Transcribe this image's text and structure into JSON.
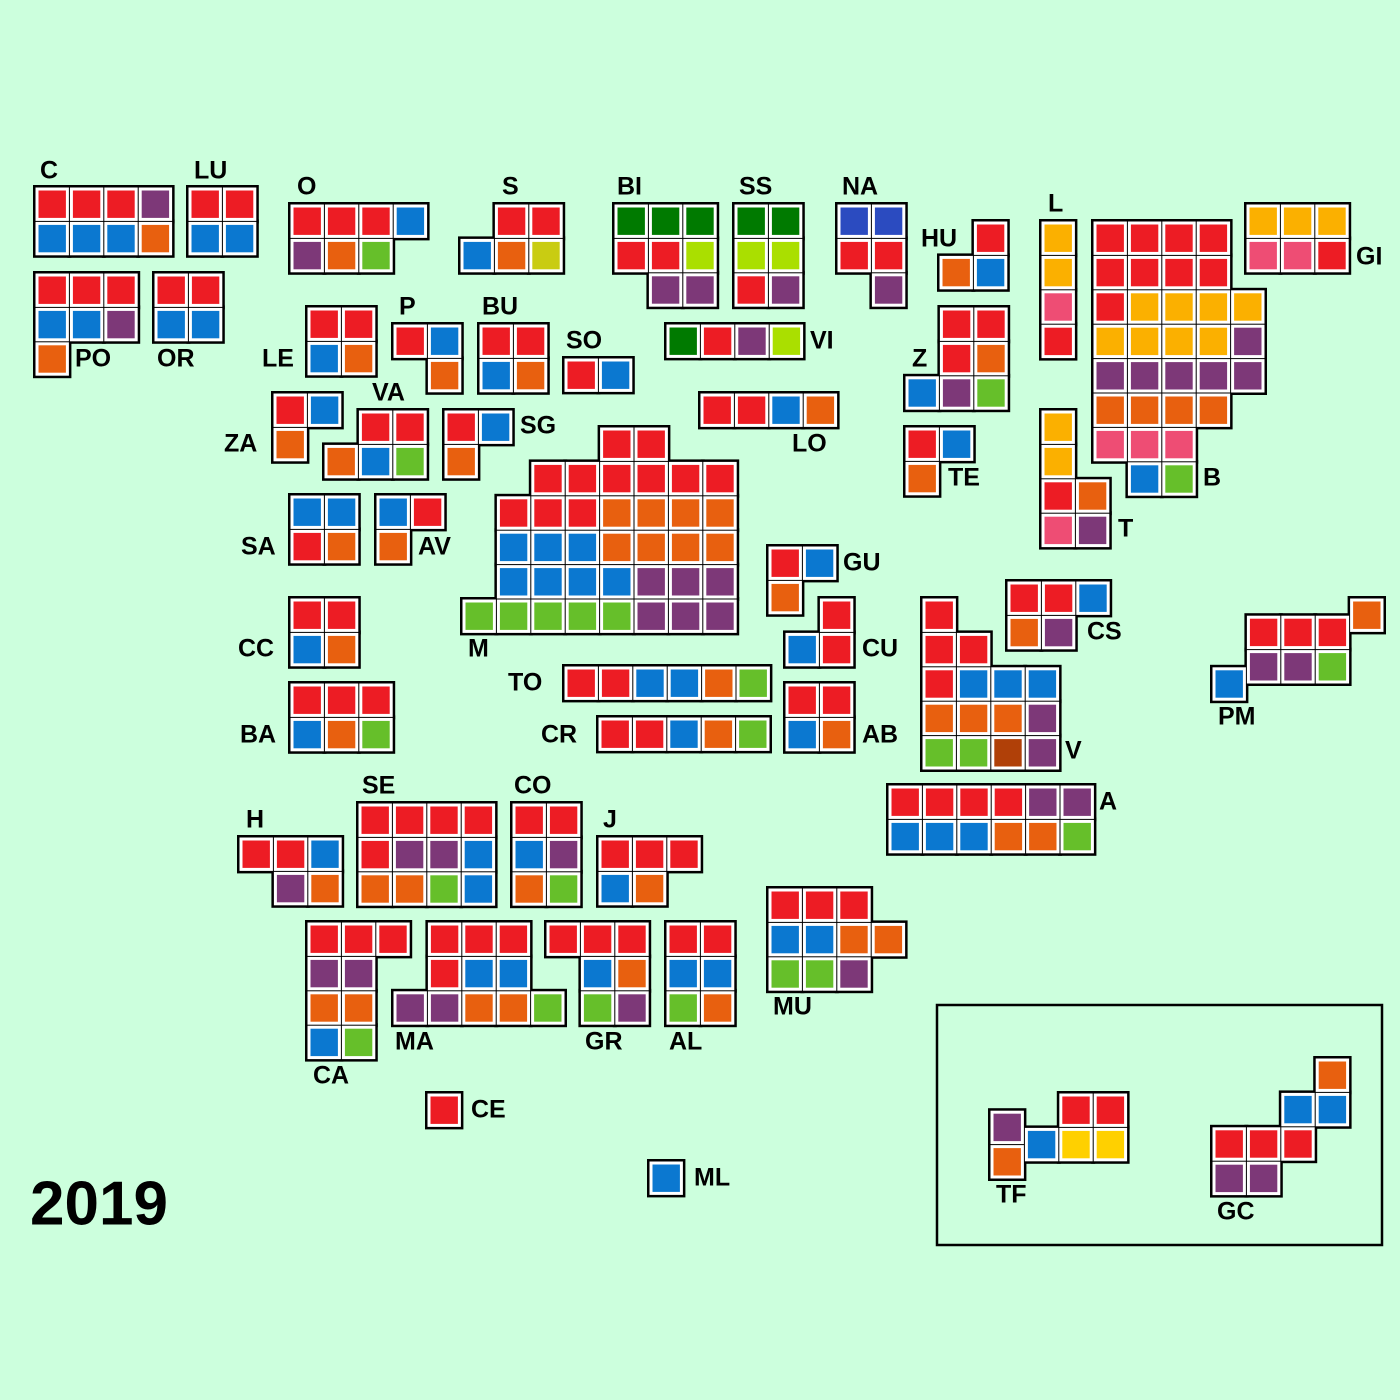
{
  "title": "2019",
  "provinces": [
    {
      "label": "C",
      "seats": [
        "#ed1c24",
        "#ed1c24",
        "#ed1c24",
        "#7d3878",
        "#0b78d0",
        "#0b78d0",
        "#0b78d0",
        "#e8600f"
      ]
    },
    {
      "label": "LU",
      "seats": [
        "#ed1c24",
        "#ed1c24",
        "#0b78d0",
        "#0b78d0"
      ]
    },
    {
      "label": "PO",
      "seats": [
        "#ed1c24",
        "#ed1c24",
        "#ed1c24",
        "#0b78d0",
        "#0b78d0",
        "#7d3878",
        "#e8600f"
      ]
    },
    {
      "label": "OR",
      "seats": [
        "#ed1c24",
        "#ed1c24",
        "#0b78d0",
        "#0b78d0"
      ]
    },
    {
      "label": "O",
      "seats": [
        "#ed1c24",
        "#ed1c24",
        "#ed1c24",
        "#0b78d0",
        "#7d3878",
        "#e8600f",
        "#66bf2a"
      ]
    },
    {
      "label": "S",
      "seats": [
        "#ed1c24",
        "#ed1c24",
        "#0b78d0",
        "#e8600f",
        "#c9cc12"
      ]
    },
    {
      "label": "BI",
      "seats": [
        "#007a00",
        "#007a00",
        "#007a00",
        "#ed1c24",
        "#ed1c24",
        "#aadf00",
        "#7d3878",
        "#7d3878"
      ]
    },
    {
      "label": "SS",
      "seats": [
        "#007a00",
        "#007a00",
        "#aadf00",
        "#aadf00",
        "#ed1c24",
        "#7d3878"
      ]
    },
    {
      "label": "NA",
      "seats": [
        "#2b4bc0",
        "#2b4bc0",
        "#ed1c24",
        "#ed1c24",
        "#7d3878"
      ]
    },
    {
      "label": "HU",
      "seats": [
        "#ed1c24",
        "#e8600f",
        "#0b78d0"
      ]
    },
    {
      "label": "L",
      "seats": [
        "#fbb000",
        "#fbb000",
        "#ee4d74",
        "#ed1c24"
      ]
    },
    {
      "label": "B",
      "seats": [
        "#ed1c24",
        "#ed1c24",
        "#ed1c24",
        "#ed1c24",
        "#ed1c24",
        "#ed1c24",
        "#ed1c24",
        "#ed1c24",
        "#ed1c24",
        "#fbb000",
        "#fbb000",
        "#fbb000",
        "#fbb000",
        "#fbb000",
        "#fbb000",
        "#fbb000",
        "#fbb000",
        "#7d3878",
        "#7d3878",
        "#7d3878",
        "#7d3878",
        "#7d3878",
        "#7d3878",
        "#e8600f",
        "#e8600f",
        "#e8600f",
        "#e8600f",
        "#ee4d74",
        "#ee4d74",
        "#ee4d74",
        "#0b78d0",
        "#66bf2a"
      ]
    },
    {
      "label": "GI",
      "seats": [
        "#fbb000",
        "#fbb000",
        "#fbb000",
        "#ee4d74",
        "#ee4d74",
        "#ed1c24"
      ]
    },
    {
      "label": "LE",
      "seats": [
        "#ed1c24",
        "#ed1c24",
        "#0b78d0",
        "#e8600f"
      ]
    },
    {
      "label": "P",
      "seats": [
        "#ed1c24",
        "#0b78d0",
        "#e8600f"
      ]
    },
    {
      "label": "BU",
      "seats": [
        "#ed1c24",
        "#ed1c24",
        "#0b78d0",
        "#e8600f"
      ]
    },
    {
      "label": "SO",
      "seats": [
        "#ed1c24",
        "#0b78d0"
      ]
    },
    {
      "label": "VI",
      "seats": [
        "#007a00",
        "#ed1c24",
        "#7d3878",
        "#aadf00"
      ]
    },
    {
      "label": "Z",
      "seats": [
        "#ed1c24",
        "#ed1c24",
        "#ed1c24",
        "#e8600f",
        "#0b78d0",
        "#7d3878",
        "#66bf2a"
      ]
    },
    {
      "label": "ZA",
      "seats": [
        "#ed1c24",
        "#0b78d0",
        "#e8600f"
      ]
    },
    {
      "label": "VA",
      "seats": [
        "#ed1c24",
        "#ed1c24",
        "#e8600f",
        "#0b78d0",
        "#66bf2a"
      ]
    },
    {
      "label": "SG",
      "seats": [
        "#ed1c24",
        "#0b78d0",
        "#e8600f"
      ]
    },
    {
      "label": "LO",
      "seats": [
        "#ed1c24",
        "#ed1c24",
        "#0b78d0",
        "#e8600f"
      ]
    },
    {
      "label": "TE",
      "seats": [
        "#ed1c24",
        "#0b78d0",
        "#e8600f"
      ]
    },
    {
      "label": "T",
      "seats": [
        "#fbb000",
        "#fbb000",
        "#ed1c24",
        "#e8600f",
        "#ee4d74",
        "#7d3878"
      ]
    },
    {
      "label": "M",
      "seats": [
        "#ed1c24",
        "#ed1c24",
        "#ed1c24",
        "#ed1c24",
        "#ed1c24",
        "#ed1c24",
        "#ed1c24",
        "#ed1c24",
        "#ed1c24",
        "#ed1c24",
        "#ed1c24",
        "#e8600f",
        "#e8600f",
        "#e8600f",
        "#e8600f",
        "#0b78d0",
        "#0b78d0",
        "#0b78d0",
        "#e8600f",
        "#e8600f",
        "#e8600f",
        "#e8600f",
        "#0b78d0",
        "#0b78d0",
        "#0b78d0",
        "#0b78d0",
        "#7d3878",
        "#7d3878",
        "#7d3878",
        "#66bf2a",
        "#66bf2a",
        "#66bf2a",
        "#66bf2a",
        "#66bf2a",
        "#7d3878",
        "#7d3878",
        "#7d3878"
      ]
    },
    {
      "label": "SA",
      "seats": [
        "#0b78d0",
        "#0b78d0",
        "#ed1c24",
        "#e8600f"
      ]
    },
    {
      "label": "AV",
      "seats": [
        "#0b78d0",
        "#ed1c24",
        "#e8600f"
      ]
    },
    {
      "label": "GU",
      "seats": [
        "#ed1c24",
        "#0b78d0",
        "#e8600f"
      ]
    },
    {
      "label": "CU",
      "seats": [
        "#ed1c24",
        "#0b78d0",
        "#ed1c24"
      ]
    },
    {
      "label": "CS",
      "seats": [
        "#ed1c24",
        "#ed1c24",
        "#0b78d0",
        "#e8600f",
        "#7d3878"
      ]
    },
    {
      "label": "PM",
      "seats": [
        "#e8600f",
        "#ed1c24",
        "#ed1c24",
        "#ed1c24",
        "#7d3878",
        "#7d3878",
        "#66bf2a",
        "#0b78d0"
      ]
    },
    {
      "label": "V",
      "seats": [
        "#ed1c24",
        "#ed1c24",
        "#ed1c24",
        "#ed1c24",
        "#0b78d0",
        "#0b78d0",
        "#0b78d0",
        "#e8600f",
        "#e8600f",
        "#e8600f",
        "#7d3878",
        "#66bf2a",
        "#66bf2a",
        "#b04008",
        "#7d3878"
      ]
    },
    {
      "label": "TO",
      "seats": [
        "#ed1c24",
        "#ed1c24",
        "#0b78d0",
        "#0b78d0",
        "#e8600f",
        "#66bf2a"
      ]
    },
    {
      "label": "CR",
      "seats": [
        "#ed1c24",
        "#ed1c24",
        "#0b78d0",
        "#e8600f",
        "#66bf2a"
      ]
    },
    {
      "label": "AB",
      "seats": [
        "#ed1c24",
        "#ed1c24",
        "#0b78d0",
        "#e8600f"
      ]
    },
    {
      "label": "CC",
      "seats": [
        "#ed1c24",
        "#ed1c24",
        "#0b78d0",
        "#e8600f"
      ]
    },
    {
      "label": "BA",
      "seats": [
        "#ed1c24",
        "#ed1c24",
        "#ed1c24",
        "#0b78d0",
        "#e8600f",
        "#66bf2a"
      ]
    },
    {
      "label": "A",
      "seats": [
        "#ed1c24",
        "#ed1c24",
        "#ed1c24",
        "#ed1c24",
        "#7d3878",
        "#7d3878",
        "#0b78d0",
        "#0b78d0",
        "#0b78d0",
        "#e8600f",
        "#e8600f",
        "#66bf2a"
      ]
    },
    {
      "label": "H",
      "seats": [
        "#ed1c24",
        "#ed1c24",
        "#0b78d0",
        "#7d3878",
        "#e8600f"
      ]
    },
    {
      "label": "SE",
      "seats": [
        "#ed1c24",
        "#ed1c24",
        "#ed1c24",
        "#ed1c24",
        "#ed1c24",
        "#7d3878",
        "#7d3878",
        "#0b78d0",
        "#e8600f",
        "#e8600f",
        "#66bf2a",
        "#0b78d0"
      ]
    },
    {
      "label": "CO",
      "seats": [
        "#ed1c24",
        "#ed1c24",
        "#0b78d0",
        "#7d3878",
        "#e8600f",
        "#66bf2a"
      ]
    },
    {
      "label": "J",
      "seats": [
        "#ed1c24",
        "#ed1c24",
        "#ed1c24",
        "#0b78d0",
        "#e8600f"
      ]
    },
    {
      "label": "MU",
      "seats": [
        "#ed1c24",
        "#ed1c24",
        "#ed1c24",
        "#0b78d0",
        "#0b78d0",
        "#e8600f",
        "#e8600f",
        "#66bf2a",
        "#66bf2a",
        "#7d3878"
      ]
    },
    {
      "label": "CA",
      "seats": [
        "#ed1c24",
        "#ed1c24",
        "#ed1c24",
        "#7d3878",
        "#7d3878",
        "#e8600f",
        "#e8600f",
        "#0b78d0",
        "#66bf2a"
      ]
    },
    {
      "label": "MA",
      "seats": [
        "#ed1c24",
        "#ed1c24",
        "#ed1c24",
        "#ed1c24",
        "#0b78d0",
        "#0b78d0",
        "#7d3878",
        "#7d3878",
        "#e8600f",
        "#e8600f",
        "#66bf2a"
      ]
    },
    {
      "label": "GR",
      "seats": [
        "#ed1c24",
        "#ed1c24",
        "#ed1c24",
        "#0b78d0",
        "#e8600f",
        "#66bf2a",
        "#7d3878"
      ]
    },
    {
      "label": "AL",
      "seats": [
        "#ed1c24",
        "#ed1c24",
        "#0b78d0",
        "#0b78d0",
        "#66bf2a",
        "#e8600f"
      ]
    },
    {
      "label": "CE",
      "seats": [
        "#ed1c24"
      ]
    },
    {
      "label": "ML",
      "seats": [
        "#0b78d0"
      ]
    },
    {
      "label": "TF",
      "seats": [
        "#ed1c24",
        "#ed1c24",
        "#7d3878",
        "#0b78d0",
        "#ffd000",
        "#ffd000",
        "#e8600f"
      ]
    },
    {
      "label": "GC",
      "seats": [
        "#e8600f",
        "#0b78d0",
        "#0b78d0",
        "#ed1c24",
        "#ed1c24",
        "#ed1c24",
        "#7d3878",
        "#7d3878"
      ]
    }
  ]
}
